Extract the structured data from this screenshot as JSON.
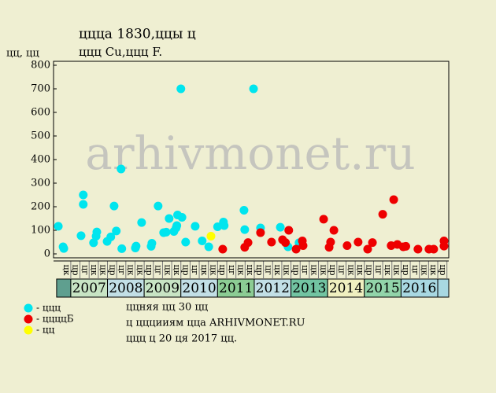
{
  "chart_data": {
    "type": "scatter",
    "title": "ццца 1830,ццы ц",
    "subtitle": "ццц Cu,ццц F.",
    "ylabel": "цц, цц",
    "watermark": "arhivmonet.ru",
    "xlim": [
      2006.53,
      2017.3
    ],
    "ylim": [
      0,
      800
    ],
    "yticks": [
      0,
      100,
      200,
      300,
      400,
      500,
      600,
      700,
      800
    ],
    "series": [
      {
        "name": "- ццц",
        "color": "#00e5ee",
        "x": [
          2006.66,
          2006.79,
          2006.81,
          2007.28,
          2007.34,
          2007.34,
          2007.62,
          2007.69,
          2007.71,
          2007.99,
          2008.09,
          2008.18,
          2008.24,
          2008.37,
          2008.39,
          2008.76,
          2008.78,
          2008.93,
          2009.19,
          2009.21,
          2009.38,
          2009.53,
          2009.6,
          2009.68,
          2009.81,
          2009.87,
          2009.89,
          2009.91,
          2010.0,
          2010.03,
          2010.13,
          2010.39,
          2010.58,
          2010.76,
          2011.0,
          2011.16,
          2011.18,
          2011.72,
          2011.74,
          2011.98,
          2012.17,
          2012.71,
          2012.92,
          2013.22
        ],
        "values": [
          117,
          30,
          23,
          77,
          250,
          210,
          47,
          75,
          93,
          53,
          72,
          203,
          97,
          360,
          22,
          25,
          33,
          133,
          32,
          45,
          203,
          90,
          92,
          150,
          95,
          110,
          120,
          165,
          700,
          155,
          50,
          117,
          55,
          30,
          115,
          135,
          120,
          185,
          103,
          700,
          110,
          113,
          30,
          47
        ]
      },
      {
        "name": "- ццццБ",
        "color": "#ee0000",
        "x": [
          2011.14,
          2011.74,
          2011.83,
          2012.17,
          2012.47,
          2012.77,
          2012.85,
          2012.94,
          2013.14,
          2013.31,
          2013.33,
          2013.89,
          2014.04,
          2014.08,
          2014.17,
          2014.53,
          2014.83,
          2015.09,
          2015.22,
          2015.5,
          2015.73,
          2015.8,
          2015.9,
          2016.06,
          2016.13,
          2016.46,
          2016.76,
          2016.89,
          2017.17,
          2017.17
        ],
        "values": [
          20,
          28,
          48,
          90,
          50,
          60,
          48,
          100,
          20,
          55,
          35,
          147,
          28,
          50,
          100,
          35,
          50,
          20,
          48,
          168,
          35,
          230,
          40,
          30,
          32,
          20,
          20,
          20,
          55,
          33
        ]
      },
      {
        "name": "- цц",
        "color": "#ffff00",
        "x": [
          2010.82
        ],
        "values": [
          75
        ]
      }
    ],
    "quarter_labels": [
      "цк",
      "цр",
      "цг",
      "цк",
      "цк",
      "цр",
      "цг",
      "цк",
      "цк",
      "цр",
      "цг",
      "цк",
      "цк",
      "цр",
      "цг",
      "цк",
      "цк",
      "цр",
      "цг",
      "цк",
      "цк",
      "цр",
      "цг",
      "цк",
      "цк",
      "цр",
      "цг",
      "цк",
      "цк",
      "цр",
      "цг",
      "цк",
      "цк",
      "цр",
      "цг",
      "цк",
      "цк",
      "цр",
      "цг",
      "цк",
      "цк",
      "цр"
    ],
    "years": [
      2007,
      2008,
      2009,
      2010,
      2011,
      2012,
      2013,
      2014,
      2015,
      2016
    ],
    "year_colors": [
      "#c8e4c4",
      "#c2dfe6",
      "#c8e4c4",
      "#c2dfe6",
      "#8ccc94",
      "#c2dfe6",
      "#72c4a2",
      "#f0f0c0",
      "#92d4aa",
      "#a8d8e2"
    ],
    "notes": [
      "ццняя цц 30 цц",
      "ц цццииям ццa ARHIVMONET.RU",
      "ццц ц 20 ця 2017 цц."
    ]
  }
}
